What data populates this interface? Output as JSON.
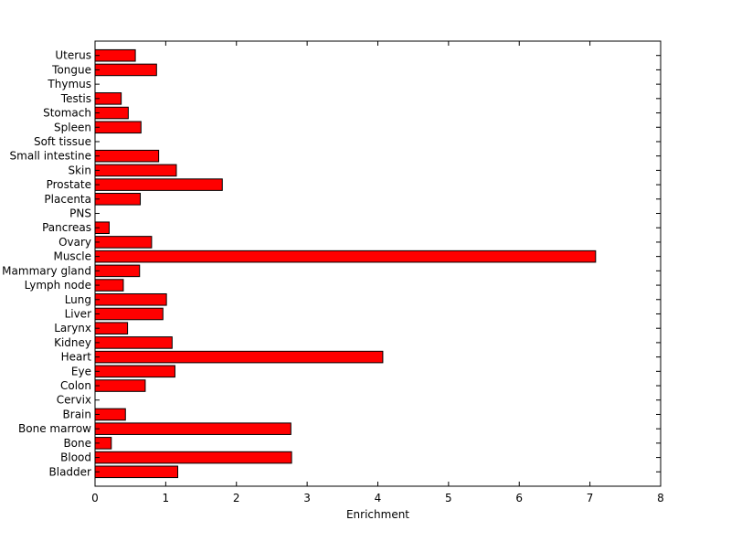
{
  "chart_data": {
    "type": "bar",
    "orientation": "horizontal",
    "title": "",
    "xlabel": "Enrichment",
    "ylabel": "",
    "xlim": [
      0,
      8
    ],
    "xticks": [
      0,
      1,
      2,
      3,
      4,
      5,
      6,
      7,
      8
    ],
    "grid": false,
    "categories": [
      "Bladder",
      "Blood",
      "Bone",
      "Bone marrow",
      "Brain",
      "Cervix",
      "Colon",
      "Eye",
      "Heart",
      "Kidney",
      "Larynx",
      "Liver",
      "Lung",
      "Lymph node",
      "Mammary gland",
      "Muscle",
      "Ovary",
      "Pancreas",
      "PNS",
      "Placenta",
      "Prostate",
      "Skin",
      "Small intestine",
      "Soft tissue",
      "Spleen",
      "Stomach",
      "Testis",
      "Thymus",
      "Tongue",
      "Uterus"
    ],
    "values": [
      1.17,
      2.78,
      0.23,
      2.77,
      0.43,
      0,
      0.71,
      1.13,
      4.07,
      1.09,
      0.46,
      0.96,
      1.01,
      0.4,
      0.63,
      7.08,
      0.8,
      0.2,
      0,
      0.64,
      1.8,
      1.15,
      0.9,
      0,
      0.65,
      0.47,
      0.37,
      0,
      0.87,
      0.57
    ],
    "bar_color": "#ff0000",
    "edge_color": "#000000"
  }
}
